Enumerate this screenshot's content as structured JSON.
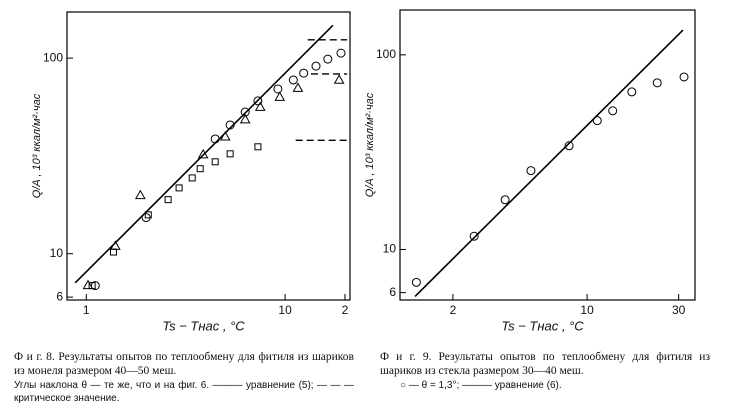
{
  "chart_data": [
    {
      "type": "scatter",
      "log_x": true,
      "log_y": true,
      "x_label": "Ts − Tнас , °C",
      "y_label": "Q/A , 10³ ккал/м²·час",
      "xlim": [
        0.8,
        21.2
      ],
      "ylim": [
        5.8,
        172
      ],
      "xticks": [
        1,
        10,
        {
          "value": 20,
          "label": "2"
        }
      ],
      "yticks": [
        6,
        10,
        100
      ],
      "color": "#000000",
      "series": [
        {
          "marker": "circle",
          "x": [
            1.11,
            2.0,
            4.45,
            5.29,
            6.3,
            7.3,
            9.2,
            11,
            12.4,
            14.3,
            16.4,
            19.1
          ],
          "values": [
            6.87,
            15.3,
            38.6,
            45.5,
            53,
            60.4,
            69.5,
            77.3,
            83.8,
            91,
            98.8,
            106
          ]
        },
        {
          "marker": "triangle",
          "x": [
            1.02,
            1.4,
            1.87,
            3.87,
            5.0,
            6.3,
            7.5,
            9.4,
            11.6,
            18.7
          ],
          "values": [
            6.87,
            10.9,
            19.8,
            32,
            39.5,
            48.3,
            56,
            63,
            70,
            77
          ]
        },
        {
          "marker": "square",
          "x": [
            1.07,
            1.37,
            2.05,
            2.58,
            2.93,
            3.41,
            3.74,
            4.45,
            5.29,
            7.3
          ],
          "values": [
            6.87,
            10.2,
            15.8,
            18.9,
            21.7,
            24.4,
            27.2,
            29.5,
            32.4,
            35.2
          ]
        }
      ],
      "fit_line": {
        "x": [
          0.88,
          17.4
        ],
        "values": [
          7.1,
          147
        ]
      },
      "critical_values": [
        {
          "value": 124,
          "x": [
            13,
            20.5
          ]
        },
        {
          "value": 83,
          "x": [
            13.5,
            20.5
          ]
        },
        {
          "value": 38,
          "x": [
            11.3,
            20.5
          ]
        }
      ],
      "caption": "Ф и г. 8. Результаты опытов по теплообмену для фитиля из шариков из монеля размером 40—50 меш.",
      "note": "Углы наклона θ — те же, что и на фиг. 6. ——— уравнение (5); — — — критическое значение."
    },
    {
      "type": "scatter",
      "log_x": true,
      "log_y": true,
      "x_label": "Ts − Tнас , °C",
      "y_label": "Q/A , 10³ ккал/м²·час",
      "xlim": [
        1.06,
        36.5
      ],
      "ylim": [
        5.5,
        170
      ],
      "xticks": [
        2,
        10,
        30
      ],
      "yticks": [
        6,
        10,
        100
      ],
      "color": "#000000",
      "series": [
        {
          "marker": "circle",
          "x": [
            1.29,
            2.58,
            3.74,
            5.1,
            8.06,
            11.3,
            13.6,
            17.1,
            23.2,
            32
          ],
          "values": [
            6.78,
            11.7,
            18,
            25.4,
            34.1,
            45.9,
            51.6,
            64.5,
            71.8,
            77
          ]
        }
      ],
      "fit_line": {
        "x": [
          1.27,
          31.6
        ],
        "values": [
          5.74,
          134
        ]
      },
      "caption": "Ф и г. 9. Результаты опытов по теплообмену для фитиля из шариков из стекла размером 30—40 меш.",
      "note": "○ — θ = 1,3°; ——— уравнение (6)."
    }
  ]
}
